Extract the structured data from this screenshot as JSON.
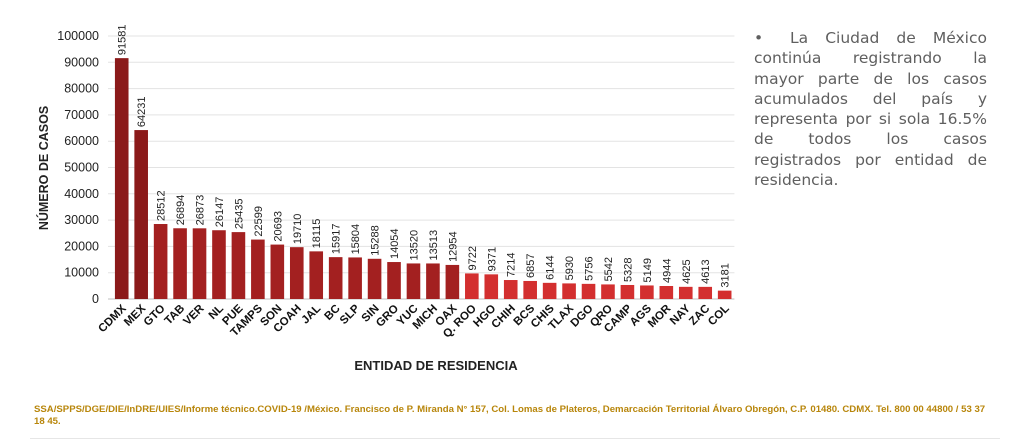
{
  "chart_data": {
    "type": "bar",
    "xlabel": "ENTIDAD DE RESIDENCIA",
    "ylabel": "NÚMERO DE CASOS",
    "ylim": [
      0,
      100000
    ],
    "yticks": [
      "0",
      "10000",
      "20000",
      "30000",
      "40000",
      "50000",
      "60000",
      "70000",
      "80000",
      "90000",
      "100000"
    ],
    "grid": true,
    "categories": [
      "CDMX",
      "MEX",
      "GTO",
      "TAB",
      "VER",
      "NL",
      "PUE",
      "TAMPS",
      "SON",
      "COAH",
      "JAL",
      "BC",
      "SLP",
      "SIN",
      "GRO",
      "YUC",
      "MICH",
      "OAX",
      "Q. ROO",
      "HGO",
      "CHIH",
      "BCS",
      "CHIS",
      "TLAX",
      "DGO",
      "QRO",
      "CAMP",
      "AGS",
      "MOR",
      "NAY",
      "ZAC",
      "COL"
    ],
    "values": [
      91581,
      64231,
      28512,
      26894,
      26873,
      26147,
      25435,
      22599,
      20693,
      19710,
      18115,
      15917,
      15804,
      15288,
      14054,
      13520,
      13513,
      12954,
      9722,
      9371,
      7214,
      6857,
      6144,
      5930,
      5756,
      5542,
      5328,
      5149,
      4944,
      4625,
      4613,
      3181
    ],
    "colors": {
      "dark": "#8b1a1a",
      "mid": "#a32020",
      "light": "#d32f2f"
    }
  },
  "note": {
    "bullet": "•",
    "text": "La Ciudad de México continúa registrando la mayor parte de los casos acumulados del país y representa por si sola 16.5% de todos los casos registrados por entidad de residencia."
  },
  "source": "SSA/SPPS/DGE/DIE/InDRE/UIES/Informe técnico.COVID-19 /México. Francisco de P. Miranda N° 157, Col. Lomas de Plateros, Demarcación Territorial Álvaro Obregón, C.P. 01480. CDMX. Tel. 800 00 44800 / 53 37 18 45."
}
